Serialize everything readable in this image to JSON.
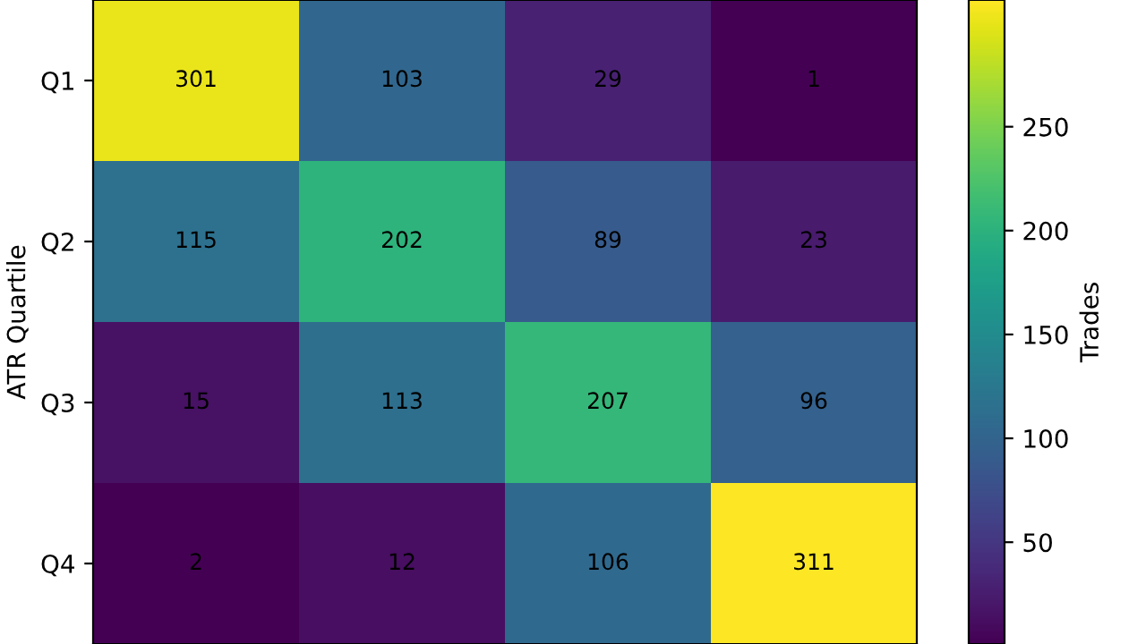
{
  "chart_data": {
    "type": "heatmap",
    "ylabel": "ATR Quartile",
    "clabel": "Trades",
    "categories": [
      null,
      null,
      null,
      null
    ],
    "y_categories": [
      "Q1",
      "Q2",
      "Q3",
      "Q4"
    ],
    "cells": [
      [
        301,
        103,
        29,
        1
      ],
      [
        115,
        202,
        89,
        23
      ],
      [
        15,
        113,
        207,
        96
      ],
      [
        2,
        12,
        106,
        311
      ]
    ],
    "clim": [
      1,
      311
    ],
    "cticks": [
      50,
      100,
      150,
      200,
      250
    ],
    "data_labels": true,
    "tick_labels": "y"
  }
}
